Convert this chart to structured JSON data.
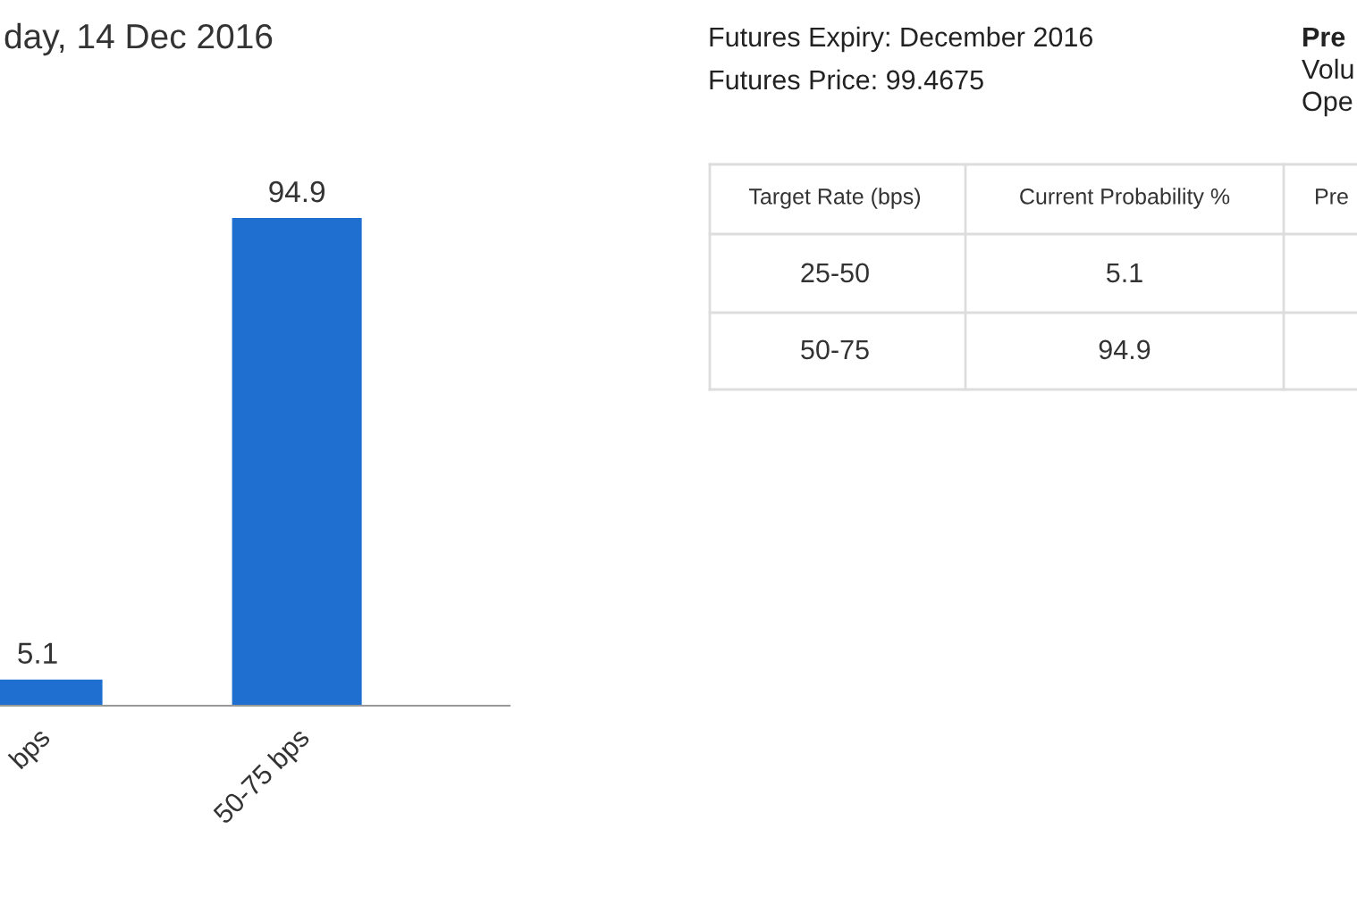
{
  "chart_data": {
    "type": "bar",
    "title": "day, 14 Dec 2016",
    "categories": [
      "bps",
      "50-75 bps"
    ],
    "values": [
      5.1,
      94.9
    ],
    "color": "#1f6fd1",
    "data_labels": true,
    "annotations": [
      "Futures Expiry: December 2016",
      "Futures Price: 99.4675",
      "Pre",
      "Volu",
      "Ope",
      "Target Rate (bps)",
      "Current Probability %",
      "Pre",
      "25-50",
      "5.1",
      "50-75",
      "94.9"
    ]
  }
}
